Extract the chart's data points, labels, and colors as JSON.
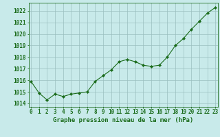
{
  "x": [
    0,
    1,
    2,
    3,
    4,
    5,
    6,
    7,
    8,
    9,
    10,
    11,
    12,
    13,
    14,
    15,
    16,
    17,
    18,
    19,
    20,
    21,
    22,
    23
  ],
  "y": [
    1015.9,
    1014.9,
    1014.3,
    1014.8,
    1014.6,
    1014.8,
    1014.9,
    1015.0,
    1015.9,
    1016.4,
    1016.9,
    1017.6,
    1017.8,
    1017.6,
    1017.3,
    1017.2,
    1017.3,
    1018.0,
    1019.0,
    1019.6,
    1020.4,
    1021.1,
    1021.8,
    1022.3
  ],
  "ylim": [
    1013.7,
    1022.7
  ],
  "yticks": [
    1014,
    1015,
    1016,
    1017,
    1018,
    1019,
    1020,
    1021,
    1022
  ],
  "xlim": [
    -0.3,
    23.3
  ],
  "xticks": [
    0,
    1,
    2,
    3,
    4,
    5,
    6,
    7,
    8,
    9,
    10,
    11,
    12,
    13,
    14,
    15,
    16,
    17,
    18,
    19,
    20,
    21,
    22,
    23
  ],
  "xlabel": "Graphe pression niveau de la mer (hPa)",
  "line_color": "#1a6b1a",
  "marker_color": "#1a6b1a",
  "bg_color": "#c8eaea",
  "grid_color": "#9bbfbf",
  "axis_color": "#1a6b1a",
  "text_color": "#1a6b1a",
  "xlabel_fontsize": 6.5,
  "tick_fontsize": 5.5,
  "xlabel_bg": "#5a9a5a"
}
